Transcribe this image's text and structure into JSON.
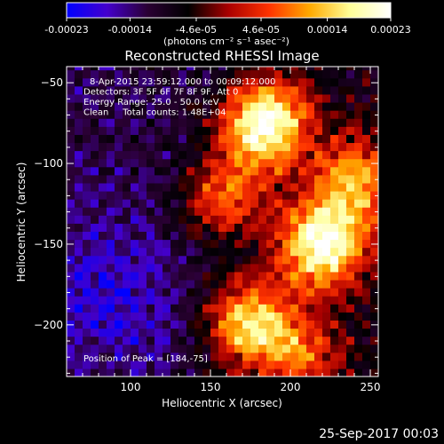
{
  "colorbar": {
    "ticks": [
      "-0.00023",
      "-0.00014",
      "-4.6e-05",
      "4.6e-05",
      "0.00014",
      "0.00023"
    ],
    "tick_values": [
      -0.00023,
      -0.00014,
      -4.6e-05,
      4.6e-05,
      0.00014,
      0.00023
    ],
    "range": [
      -0.00023,
      0.00023
    ],
    "units": "(photons cm⁻² s⁻¹ asec⁻²)",
    "colors": [
      "#0000ff",
      "#4400cc",
      "#2a0033",
      "#000000",
      "#aa0000",
      "#ff3300",
      "#ffaa00",
      "#ffff99",
      "#ffffff"
    ]
  },
  "chart_data": {
    "type": "heatmap",
    "title": "Reconstructed RHESSI Image",
    "xlabel": "Heliocentric X (arcsec)",
    "ylabel": "Heliocentric Y (arcsec)",
    "xlim": [
      60,
      255
    ],
    "ylim": [
      -232,
      -40
    ],
    "xticks": [
      100,
      150,
      200,
      250
    ],
    "yticks": [
      -50,
      -100,
      -150,
      -200
    ],
    "annotations": [
      "8-Apr-2015 23:59:12.000 to 00:09:12.000",
      "Detectors: 3F 5F 6F 7F 8F 9F, Att 0",
      "Energy Range: 25.0 - 50.0 keV",
      "Clean     Total counts: 1.48E+04"
    ],
    "peak_label": "Position of Peak = [184,-75]",
    "peak": [
      184,
      -75
    ],
    "bright_sources": [
      {
        "x": 184,
        "y": -75,
        "relative_intensity": 1.0
      },
      {
        "x": 220,
        "y": -150,
        "relative_intensity": 0.95
      },
      {
        "x": 175,
        "y": -198,
        "relative_intensity": 0.75
      },
      {
        "x": 240,
        "y": -110,
        "relative_intensity": 0.6
      },
      {
        "x": 160,
        "y": -120,
        "relative_intensity": 0.5
      },
      {
        "x": 205,
        "y": -220,
        "relative_intensity": 0.45
      }
    ]
  },
  "footer": {
    "date": "25-Sep-2017 00:03"
  }
}
